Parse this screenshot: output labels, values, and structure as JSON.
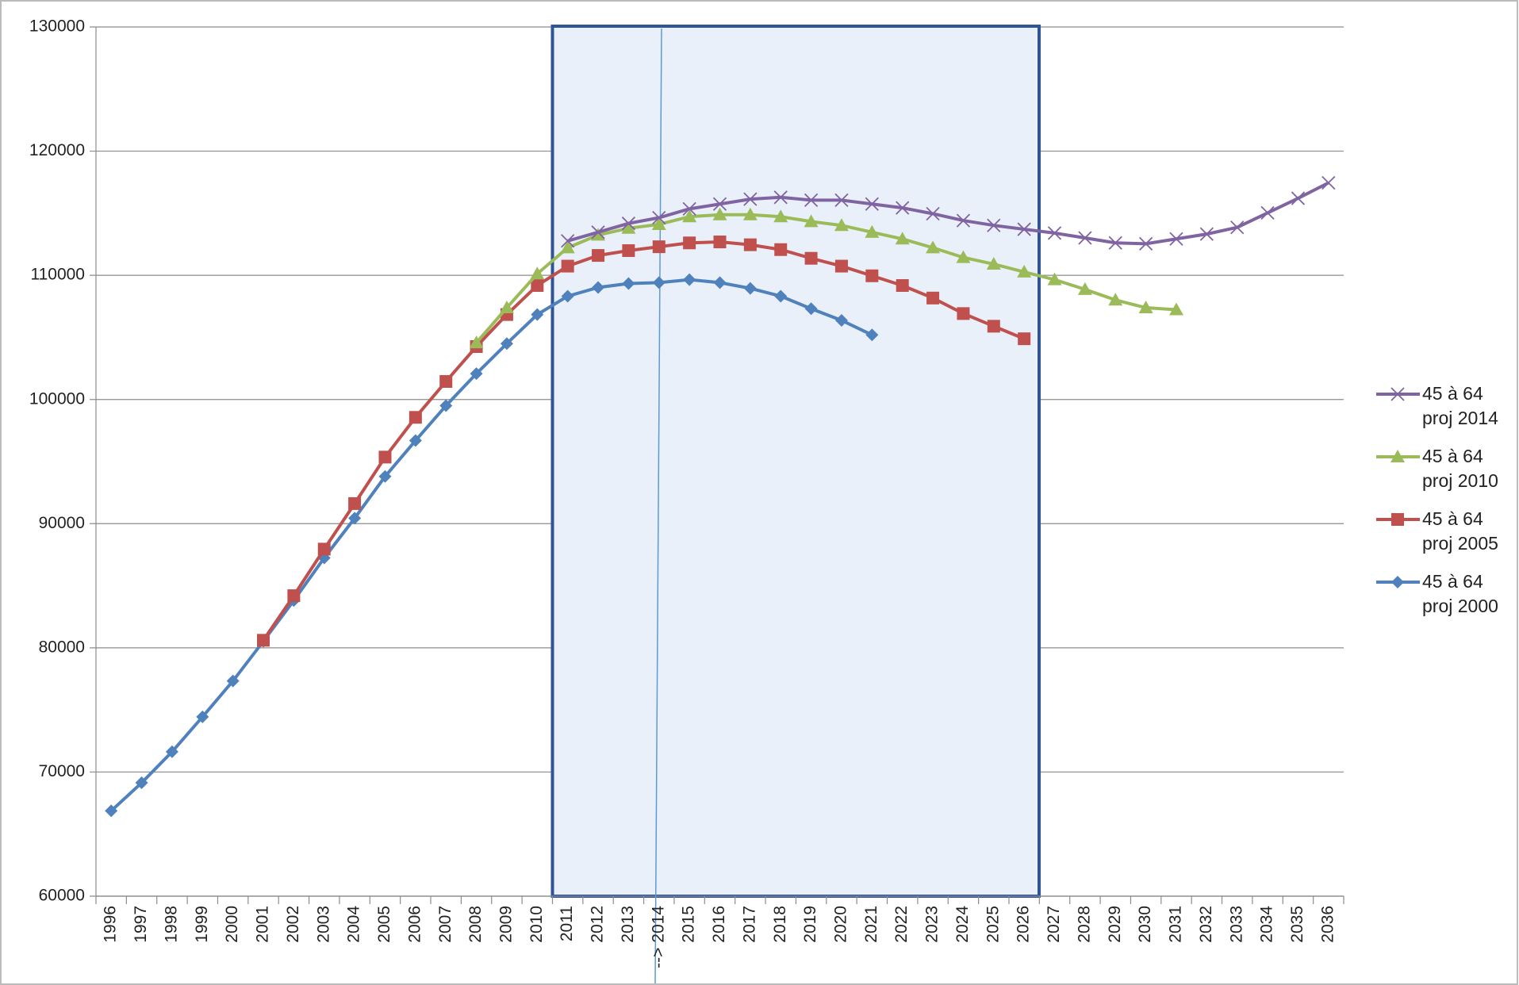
{
  "chart_data": {
    "type": "line",
    "categories": [
      "1996",
      "1997",
      "1998",
      "1999",
      "2000",
      "2001",
      "2002",
      "2003",
      "2004",
      "2005",
      "2006",
      "2007",
      "2008",
      "2009",
      "2010",
      "2011",
      "2012",
      "2013",
      "--> 2014",
      "2015",
      "2016",
      "2017",
      "2018",
      "2019",
      "2020",
      "2021",
      "2022",
      "2023",
      "2024",
      "2025",
      "2026",
      "2027",
      "2028",
      "2029",
      "2030",
      "2031",
      "2032",
      "2033",
      "2034",
      "2035",
      "2036"
    ],
    "ylim": [
      60000,
      130000
    ],
    "yticks": [
      60000,
      70000,
      80000,
      90000,
      100000,
      110000,
      120000,
      130000
    ],
    "grid": true,
    "legend": "right",
    "series": [
      {
        "name": "45 à 64 proj 2014",
        "color": "#8064a2",
        "marker": "x",
        "values": [
          null,
          null,
          null,
          null,
          null,
          null,
          null,
          null,
          null,
          null,
          null,
          null,
          null,
          null,
          null,
          112770,
          113470,
          114180,
          114640,
          115350,
          115740,
          116130,
          116280,
          116050,
          116050,
          115740,
          115430,
          114960,
          114410,
          114020,
          113710,
          113400,
          113010,
          112610,
          112540,
          112930,
          113320,
          113860,
          115030,
          116200,
          117450
        ]
      },
      {
        "name": "45 à 64 proj 2010",
        "color": "#9bbb59",
        "marker": "triangle",
        "values": [
          null,
          null,
          null,
          null,
          null,
          null,
          null,
          null,
          null,
          null,
          null,
          null,
          104570,
          107390,
          110120,
          112220,
          113240,
          113790,
          114100,
          114720,
          114880,
          114880,
          114720,
          114330,
          114020,
          113470,
          112930,
          112220,
          111440,
          110900,
          110270,
          109650,
          108870,
          108010,
          107390,
          107230,
          null,
          null,
          null,
          null,
          null
        ]
      },
      {
        "name": "45 à 64 proj 2005",
        "color": "#c0504d",
        "marker": "square",
        "values": [
          null,
          null,
          null,
          null,
          null,
          80610,
          84200,
          87950,
          91620,
          95360,
          98560,
          101450,
          104260,
          106840,
          109180,
          110740,
          111600,
          111990,
          112300,
          112610,
          112690,
          112460,
          112070,
          111370,
          110740,
          109960,
          109180,
          108170,
          106920,
          105900,
          104890,
          null,
          null,
          null,
          null,
          null,
          null,
          null,
          null,
          null,
          null
        ]
      },
      {
        "name": "45 à 64 proj 2000",
        "color": "#4f81bd",
        "marker": "diamond",
        "values": [
          66870,
          69130,
          71630,
          74440,
          77330,
          80530,
          83810,
          87240,
          90440,
          93800,
          96690,
          99500,
          102080,
          104500,
          106840,
          108320,
          109020,
          109340,
          109410,
          109650,
          109410,
          108950,
          108320,
          107310,
          106370,
          105200,
          null,
          null,
          null,
          null,
          null,
          null,
          null,
          null,
          null,
          null,
          null,
          null,
          null,
          null,
          null
        ]
      }
    ]
  }
}
